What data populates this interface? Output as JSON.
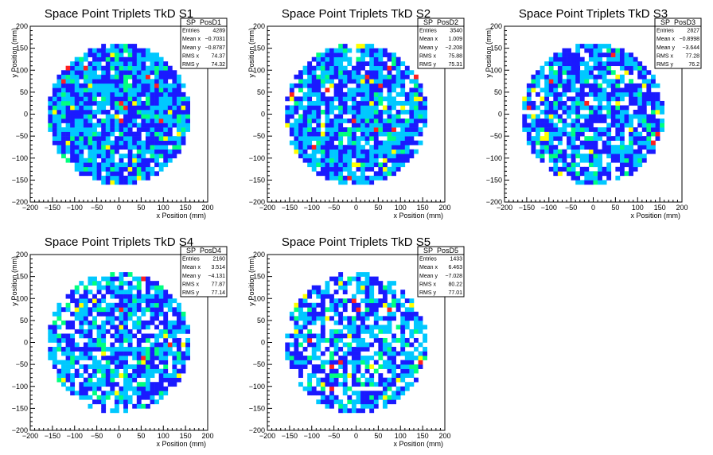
{
  "chart_data": [
    {
      "type": "heatmap",
      "title": "Space Point Triplets TkD S1",
      "xlabel": "x Position (mm)",
      "ylabel": "y Position (mm)",
      "xlim": [
        -200,
        200
      ],
      "ylim": [
        -200,
        200
      ],
      "xticks": [
        "−200",
        "−150",
        "−100",
        "−50",
        "0",
        "50",
        "100",
        "150",
        "200"
      ],
      "yticks": [
        "−200",
        "−150",
        "−100",
        "−50",
        "0",
        "50",
        "100",
        "150",
        "200"
      ],
      "bin_width": 10,
      "populated_radius": 160,
      "stats": {
        "name": "SP_PosD1",
        "rows": [
          {
            "label": "Entries",
            "value": "4289"
          },
          {
            "label": "Mean x",
            "value": "−0.7031"
          },
          {
            "label": "Mean y",
            "value": "−0.8787"
          },
          {
            "label": "RMS x",
            "value": "74.37"
          },
          {
            "label": "RMS y",
            "value": "74.32"
          }
        ]
      }
    },
    {
      "type": "heatmap",
      "title": "Space Point Triplets TkD S2",
      "xlabel": "x Position (mm)",
      "ylabel": "y Position (mm)",
      "xlim": [
        -200,
        200
      ],
      "ylim": [
        -200,
        200
      ],
      "xticks": [
        "−200",
        "−150",
        "−100",
        "−50",
        "0",
        "50",
        "100",
        "150",
        "200"
      ],
      "yticks": [
        "−200",
        "−150",
        "−100",
        "−50",
        "0",
        "50",
        "100",
        "150",
        "200"
      ],
      "bin_width": 10,
      "populated_radius": 160,
      "stats": {
        "name": "SP_PosD2",
        "rows": [
          {
            "label": "Entries",
            "value": "3540"
          },
          {
            "label": "Mean x",
            "value": "1.009"
          },
          {
            "label": "Mean y",
            "value": "−2.208"
          },
          {
            "label": "RMS x",
            "value": "75.88"
          },
          {
            "label": "RMS y",
            "value": "75.31"
          }
        ]
      }
    },
    {
      "type": "heatmap",
      "title": "Space Point Triplets TkD S3",
      "xlabel": "x Position (mm)",
      "ylabel": "y Position (mm)",
      "xlim": [
        -200,
        200
      ],
      "ylim": [
        -200,
        200
      ],
      "xticks": [
        "−200",
        "−150",
        "−100",
        "−50",
        "0",
        "50",
        "100",
        "150",
        "200"
      ],
      "yticks": [
        "−200",
        "−150",
        "−100",
        "−50",
        "0",
        "50",
        "100",
        "150",
        "200"
      ],
      "bin_width": 10,
      "populated_radius": 160,
      "stats": {
        "name": "SP_PosD3",
        "rows": [
          {
            "label": "Entries",
            "value": "2827"
          },
          {
            "label": "Mean x",
            "value": "−0.8998"
          },
          {
            "label": "Mean y",
            "value": "−3.644"
          },
          {
            "label": "RMS x",
            "value": "77.28"
          },
          {
            "label": "RMS y",
            "value": "76.2"
          }
        ]
      }
    },
    {
      "type": "heatmap",
      "title": "Space Point Triplets TkD S4",
      "xlabel": "x Position (mm)",
      "ylabel": "y Position (mm)",
      "xlim": [
        -200,
        200
      ],
      "ylim": [
        -200,
        200
      ],
      "xticks": [
        "−200",
        "−150",
        "−100",
        "−50",
        "0",
        "50",
        "100",
        "150",
        "200"
      ],
      "yticks": [
        "−200",
        "−150",
        "−100",
        "−50",
        "0",
        "50",
        "100",
        "150",
        "200"
      ],
      "bin_width": 10,
      "populated_radius": 160,
      "stats": {
        "name": "SP_PosD4",
        "rows": [
          {
            "label": "Entries",
            "value": "2160"
          },
          {
            "label": "Mean x",
            "value": "3.514"
          },
          {
            "label": "Mean y",
            "value": "−4.131"
          },
          {
            "label": "RMS x",
            "value": "77.87"
          },
          {
            "label": "RMS y",
            "value": "77.14"
          }
        ]
      }
    },
    {
      "type": "heatmap",
      "title": "Space Point Triplets TkD S5",
      "xlabel": "x Position (mm)",
      "ylabel": "y Position (mm)",
      "xlim": [
        -200,
        200
      ],
      "ylim": [
        -200,
        200
      ],
      "xticks": [
        "−200",
        "−150",
        "−100",
        "−50",
        "0",
        "50",
        "100",
        "150",
        "200"
      ],
      "yticks": [
        "−200",
        "−150",
        "−100",
        "−50",
        "0",
        "50",
        "100",
        "150",
        "200"
      ],
      "bin_width": 10,
      "populated_radius": 160,
      "stats": {
        "name": "SP_PosD5",
        "rows": [
          {
            "label": "Entries",
            "value": "1433"
          },
          {
            "label": "Mean x",
            "value": "6.463"
          },
          {
            "label": "Mean y",
            "value": "−7.028"
          },
          {
            "label": "RMS x",
            "value": "80.22"
          },
          {
            "label": "RMS y",
            "value": "77.01"
          }
        ]
      }
    }
  ],
  "colors": {
    "palette": [
      "#1a1aff",
      "#00c8ff",
      "#00ff80",
      "#ffff00",
      "#ff2020"
    ],
    "frame": "#000000",
    "background": "#ffffff"
  }
}
